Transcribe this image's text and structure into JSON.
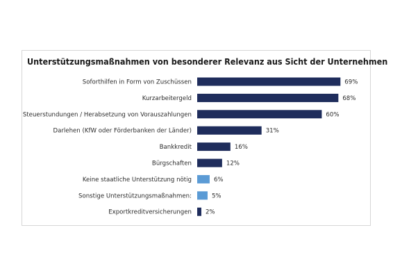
{
  "colors": {
    "dark_bar": "#1f2d5c",
    "light_bar": "#5b9bd5",
    "border": "#d6d6d6"
  },
  "chart_data": {
    "type": "bar",
    "orientation": "horizontal",
    "title": "Unterstützungsmaßnahmen von besonderer Relevanz aus Sicht der Unternehmen",
    "categories": [
      "Soforthilfen in Form von Zuschüssen",
      "Kurzarbeitergeld",
      "Steuerstundungen / Herabsetzung von Vorauszahlungen",
      "Darlehen (KfW oder Förderbanken der Länder)",
      "Bankkredit",
      "Bürgschaften",
      "Keine staatliche Unterstützung nötig",
      "Sonstige Unterstützungsmaßnahmen:",
      "Exportkreditversicherungen"
    ],
    "values": [
      69,
      68,
      60,
      31,
      16,
      12,
      6,
      5,
      2
    ],
    "value_labels": [
      "69%",
      "68%",
      "60%",
      "31%",
      "16%",
      "12%",
      "6%",
      "5%",
      "2%"
    ],
    "bar_colors": [
      "#1f2d5c",
      "#1f2d5c",
      "#1f2d5c",
      "#1f2d5c",
      "#1f2d5c",
      "#1f2d5c",
      "#5b9bd5",
      "#5b9bd5",
      "#1f2d5c"
    ],
    "xlim": [
      0,
      100
    ],
    "grid": false,
    "legend": false
  }
}
